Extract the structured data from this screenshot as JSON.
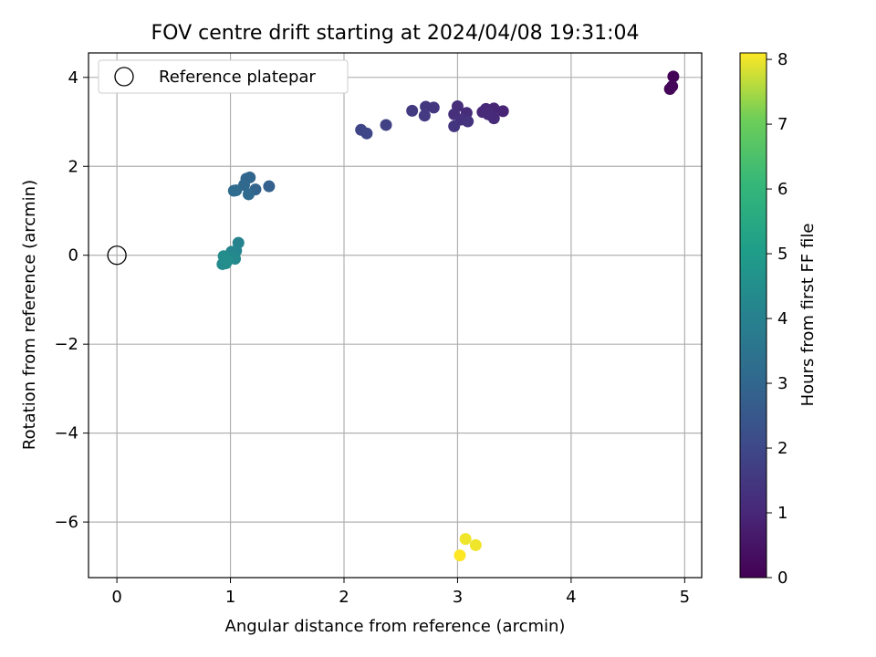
{
  "chart_data": {
    "type": "scatter",
    "title": "FOV centre drift starting at 2024/04/08 19:31:04",
    "xlabel": "Angular distance from reference (arcmin)",
    "ylabel": "Rotation from reference (arcmin)",
    "xlim": [
      -0.25,
      5.15
    ],
    "ylim": [
      -7.25,
      4.55
    ],
    "xticks": [
      0,
      1,
      2,
      3,
      4,
      5
    ],
    "xtick_labels": [
      "0",
      "1",
      "2",
      "3",
      "4",
      "5"
    ],
    "yticks": [
      -6,
      -4,
      -2,
      0,
      2,
      4
    ],
    "ytick_labels": [
      "−6",
      "−4",
      "−2",
      "0",
      "2",
      "4"
    ],
    "grid": true,
    "legend": {
      "position": "upper-left",
      "entries": [
        "Reference platepar"
      ]
    },
    "reference_point": {
      "x": 0,
      "y": 0
    },
    "colorbar": {
      "label": "Hours from first FF file",
      "colormap": "viridis",
      "range": [
        0,
        8.1
      ],
      "ticks": [
        0,
        1,
        2,
        3,
        4,
        5,
        6,
        7,
        8
      ],
      "tick_labels": [
        "0",
        "1",
        "2",
        "3",
        "4",
        "5",
        "6",
        "7",
        "8"
      ]
    },
    "points": [
      {
        "x": 4.9,
        "y": 4.02,
        "c": 0.05
      },
      {
        "x": 4.87,
        "y": 3.74,
        "c": 0.1
      },
      {
        "x": 4.89,
        "y": 3.8,
        "c": 0.15
      },
      {
        "x": 3.4,
        "y": 3.24,
        "c": 0.9
      },
      {
        "x": 3.32,
        "y": 3.3,
        "c": 0.95
      },
      {
        "x": 3.25,
        "y": 3.29,
        "c": 1.0
      },
      {
        "x": 3.22,
        "y": 3.22,
        "c": 1.05
      },
      {
        "x": 3.32,
        "y": 3.08,
        "c": 1.1
      },
      {
        "x": 3.27,
        "y": 3.17,
        "c": 1.1
      },
      {
        "x": 3.08,
        "y": 3.2,
        "c": 1.15
      },
      {
        "x": 3.0,
        "y": 3.35,
        "c": 1.2
      },
      {
        "x": 2.97,
        "y": 3.17,
        "c": 1.25
      },
      {
        "x": 3.03,
        "y": 3.05,
        "c": 1.3
      },
      {
        "x": 3.09,
        "y": 3.01,
        "c": 1.35
      },
      {
        "x": 2.97,
        "y": 2.9,
        "c": 1.4
      },
      {
        "x": 2.79,
        "y": 3.32,
        "c": 1.45
      },
      {
        "x": 2.72,
        "y": 3.34,
        "c": 1.5
      },
      {
        "x": 2.71,
        "y": 3.14,
        "c": 1.55
      },
      {
        "x": 2.6,
        "y": 3.25,
        "c": 1.6
      },
      {
        "x": 2.37,
        "y": 2.93,
        "c": 1.8
      },
      {
        "x": 2.15,
        "y": 2.82,
        "c": 1.9
      },
      {
        "x": 2.2,
        "y": 2.74,
        "c": 1.95
      },
      {
        "x": 1.34,
        "y": 1.55,
        "c": 2.8
      },
      {
        "x": 1.22,
        "y": 1.48,
        "c": 2.9
      },
      {
        "x": 1.17,
        "y": 1.75,
        "c": 2.95
      },
      {
        "x": 1.14,
        "y": 1.72,
        "c": 3.0
      },
      {
        "x": 1.12,
        "y": 1.58,
        "c": 3.05
      },
      {
        "x": 1.16,
        "y": 1.37,
        "c": 3.1
      },
      {
        "x": 1.05,
        "y": 1.46,
        "c": 3.15
      },
      {
        "x": 1.03,
        "y": 1.45,
        "c": 3.2
      },
      {
        "x": 1.07,
        "y": 0.28,
        "c": 4.1
      },
      {
        "x": 1.05,
        "y": 0.1,
        "c": 4.15
      },
      {
        "x": 1.01,
        "y": 0.08,
        "c": 4.2
      },
      {
        "x": 1.04,
        "y": -0.08,
        "c": 4.25
      },
      {
        "x": 0.99,
        "y": -0.05,
        "c": 4.3
      },
      {
        "x": 0.96,
        "y": -0.18,
        "c": 4.35
      },
      {
        "x": 0.93,
        "y": -0.2,
        "c": 4.4
      },
      {
        "x": 0.94,
        "y": -0.02,
        "c": 4.45
      },
      {
        "x": 0.97,
        "y": -0.12,
        "c": 4.5
      },
      {
        "x": 3.07,
        "y": -6.38,
        "c": 8.0
      },
      {
        "x": 3.16,
        "y": -6.52,
        "c": 8.0
      },
      {
        "x": 3.02,
        "y": -6.75,
        "c": 8.1
      }
    ]
  }
}
